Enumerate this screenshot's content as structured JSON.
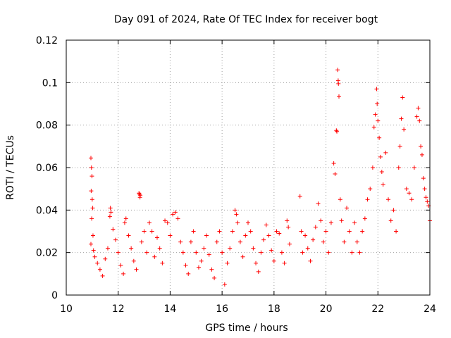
{
  "chart_data": {
    "type": "scatter",
    "title": "Day 091 of 2024, Rate Of TEC Index for receiver bogt",
    "xlabel": "GPS time / hours",
    "ylabel": "ROTI / TECUs",
    "xlim": [
      10,
      24
    ],
    "ylim": [
      0,
      0.12
    ],
    "grid": true,
    "x_ticks": [
      10,
      12,
      14,
      16,
      18,
      20,
      22,
      24
    ],
    "x_tick_labels": [
      "10",
      "12",
      "14",
      "16",
      "18",
      "20",
      "22",
      "24"
    ],
    "y_ticks": [
      0,
      0.02,
      0.04,
      0.06,
      0.08,
      0.1,
      0.12
    ],
    "y_tick_labels": [
      "0",
      "0.02",
      "0.04",
      "0.06",
      "0.08",
      "0.1",
      "0.12"
    ],
    "series": [
      {
        "name": "ROTI",
        "color": "#ff0000",
        "marker": "+",
        "points": [
          [
            10.95,
            0.0645
          ],
          [
            10.97,
            0.06
          ],
          [
            10.99,
            0.056
          ],
          [
            10.96,
            0.049
          ],
          [
            11.0,
            0.045
          ],
          [
            11.02,
            0.041
          ],
          [
            10.98,
            0.036
          ],
          [
            11.03,
            0.028
          ],
          [
            10.95,
            0.024
          ],
          [
            11.05,
            0.021
          ],
          [
            11.1,
            0.018
          ],
          [
            11.2,
            0.015
          ],
          [
            11.3,
            0.012
          ],
          [
            11.4,
            0.009
          ],
          [
            11.5,
            0.017
          ],
          [
            11.6,
            0.022
          ],
          [
            11.7,
            0.041
          ],
          [
            11.72,
            0.039
          ],
          [
            11.68,
            0.037
          ],
          [
            11.8,
            0.031
          ],
          [
            11.9,
            0.026
          ],
          [
            12.0,
            0.02
          ],
          [
            12.1,
            0.014
          ],
          [
            12.2,
            0.01
          ],
          [
            12.25,
            0.034
          ],
          [
            12.3,
            0.036
          ],
          [
            12.4,
            0.028
          ],
          [
            12.5,
            0.022
          ],
          [
            12.6,
            0.016
          ],
          [
            12.7,
            0.012
          ],
          [
            12.8,
            0.048
          ],
          [
            12.82,
            0.0475
          ],
          [
            12.85,
            0.047
          ],
          [
            12.84,
            0.046
          ],
          [
            12.9,
            0.025
          ],
          [
            13.0,
            0.03
          ],
          [
            13.1,
            0.02
          ],
          [
            13.2,
            0.034
          ],
          [
            13.3,
            0.03
          ],
          [
            13.4,
            0.018
          ],
          [
            13.5,
            0.027
          ],
          [
            13.6,
            0.022
          ],
          [
            13.7,
            0.015
          ],
          [
            13.8,
            0.035
          ],
          [
            13.9,
            0.034
          ],
          [
            14.0,
            0.028
          ],
          [
            14.1,
            0.038
          ],
          [
            14.2,
            0.039
          ],
          [
            14.3,
            0.036
          ],
          [
            14.4,
            0.025
          ],
          [
            14.5,
            0.02
          ],
          [
            14.6,
            0.014
          ],
          [
            14.7,
            0.01
          ],
          [
            14.8,
            0.025
          ],
          [
            14.9,
            0.03
          ],
          [
            15.0,
            0.02
          ],
          [
            15.1,
            0.013
          ],
          [
            15.2,
            0.016
          ],
          [
            15.3,
            0.022
          ],
          [
            15.4,
            0.028
          ],
          [
            15.5,
            0.019
          ],
          [
            15.6,
            0.012
          ],
          [
            15.7,
            0.008
          ],
          [
            15.8,
            0.025
          ],
          [
            15.9,
            0.03
          ],
          [
            16.0,
            0.02
          ],
          [
            16.1,
            0.005
          ],
          [
            16.2,
            0.015
          ],
          [
            16.3,
            0.022
          ],
          [
            16.4,
            0.03
          ],
          [
            16.5,
            0.04
          ],
          [
            16.55,
            0.038
          ],
          [
            16.6,
            0.034
          ],
          [
            16.7,
            0.025
          ],
          [
            16.8,
            0.018
          ],
          [
            16.9,
            0.028
          ],
          [
            17.0,
            0.034
          ],
          [
            17.1,
            0.03
          ],
          [
            17.2,
            0.022
          ],
          [
            17.3,
            0.015
          ],
          [
            17.4,
            0.011
          ],
          [
            17.5,
            0.02
          ],
          [
            17.6,
            0.026
          ],
          [
            17.7,
            0.033
          ],
          [
            17.8,
            0.028
          ],
          [
            17.9,
            0.021
          ],
          [
            18.0,
            0.016
          ],
          [
            18.1,
            0.03
          ],
          [
            18.2,
            0.029
          ],
          [
            18.3,
            0.02
          ],
          [
            18.4,
            0.015
          ],
          [
            18.5,
            0.035
          ],
          [
            18.55,
            0.032
          ],
          [
            18.6,
            0.024
          ],
          [
            19.0,
            0.0465
          ],
          [
            19.05,
            0.03
          ],
          [
            19.1,
            0.02
          ],
          [
            19.2,
            0.028
          ],
          [
            19.3,
            0.022
          ],
          [
            19.4,
            0.016
          ],
          [
            19.5,
            0.026
          ],
          [
            19.6,
            0.032
          ],
          [
            19.7,
            0.043
          ],
          [
            19.8,
            0.035
          ],
          [
            19.9,
            0.025
          ],
          [
            20.0,
            0.03
          ],
          [
            20.1,
            0.02
          ],
          [
            20.2,
            0.034
          ],
          [
            20.3,
            0.062
          ],
          [
            20.35,
            0.057
          ],
          [
            20.4,
            0.0775
          ],
          [
            20.42,
            0.077
          ],
          [
            20.45,
            0.106
          ],
          [
            20.47,
            0.101
          ],
          [
            20.48,
            0.0995
          ],
          [
            20.5,
            0.0935
          ],
          [
            20.55,
            0.045
          ],
          [
            20.6,
            0.035
          ],
          [
            20.7,
            0.025
          ],
          [
            20.8,
            0.041
          ],
          [
            20.9,
            0.03
          ],
          [
            21.0,
            0.02
          ],
          [
            21.1,
            0.034
          ],
          [
            21.2,
            0.025
          ],
          [
            21.3,
            0.02
          ],
          [
            21.4,
            0.03
          ],
          [
            21.5,
            0.036
          ],
          [
            21.6,
            0.045
          ],
          [
            21.7,
            0.05
          ],
          [
            21.8,
            0.06
          ],
          [
            21.85,
            0.079
          ],
          [
            21.9,
            0.085
          ],
          [
            21.95,
            0.097
          ],
          [
            21.97,
            0.09
          ],
          [
            22.0,
            0.082
          ],
          [
            22.05,
            0.074
          ],
          [
            22.1,
            0.065
          ],
          [
            22.15,
            0.058
          ],
          [
            22.2,
            0.052
          ],
          [
            22.3,
            0.067
          ],
          [
            22.4,
            0.045
          ],
          [
            22.5,
            0.035
          ],
          [
            22.6,
            0.04
          ],
          [
            22.7,
            0.03
          ],
          [
            22.8,
            0.06
          ],
          [
            22.85,
            0.07
          ],
          [
            22.9,
            0.083
          ],
          [
            22.95,
            0.093
          ],
          [
            23.0,
            0.078
          ],
          [
            23.1,
            0.05
          ],
          [
            23.2,
            0.048
          ],
          [
            23.3,
            0.045
          ],
          [
            23.4,
            0.06
          ],
          [
            23.5,
            0.084
          ],
          [
            23.55,
            0.088
          ],
          [
            23.6,
            0.082
          ],
          [
            23.65,
            0.07
          ],
          [
            23.7,
            0.066
          ],
          [
            23.75,
            0.055
          ],
          [
            23.8,
            0.05
          ],
          [
            23.85,
            0.046
          ],
          [
            23.9,
            0.044
          ],
          [
            23.95,
            0.042
          ],
          [
            24.0,
            0.035
          ]
        ]
      }
    ]
  }
}
